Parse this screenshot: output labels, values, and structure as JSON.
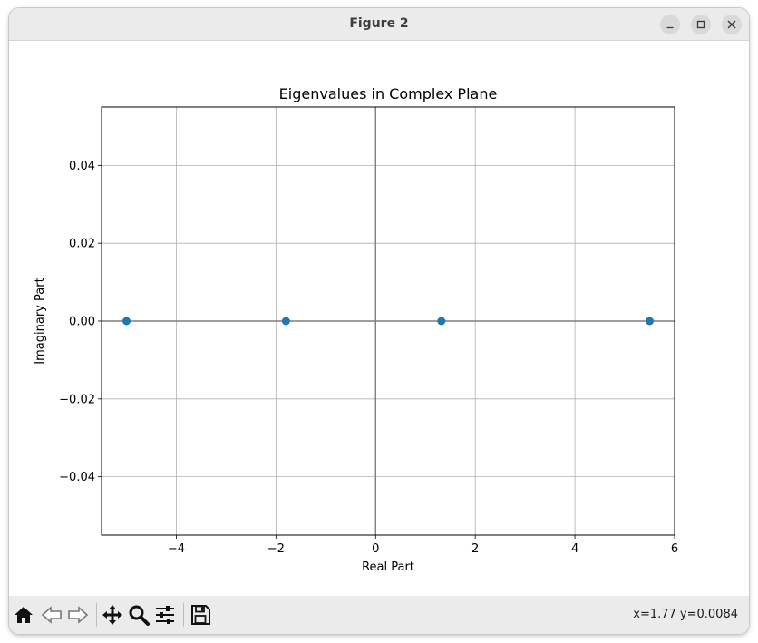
{
  "window": {
    "title": "Figure 2",
    "controls": [
      "minimize-icon",
      "maximize-icon",
      "close-icon"
    ]
  },
  "toolbar": {
    "buttons": [
      "home-icon",
      "back-arrow-icon",
      "forward-arrow-icon",
      "pan-icon",
      "zoom-icon",
      "configure-subplots-icon",
      "save-icon"
    ],
    "coordinates": "x=1.77 y=0.0084"
  },
  "chart_data": {
    "type": "scatter",
    "title": "Eigenvalues in Complex Plane",
    "xlabel": "Real Part",
    "ylabel": "Imaginary Part",
    "xlim": [
      -5.5,
      6
    ],
    "ylim": [
      -0.055,
      0.055
    ],
    "x_ticks": [
      -4,
      -2,
      0,
      2,
      4,
      6
    ],
    "x_tick_labels": [
      "−4",
      "−2",
      "0",
      "2",
      "4",
      "6"
    ],
    "y_ticks": [
      -0.04,
      -0.02,
      0.0,
      0.02,
      0.04
    ],
    "y_tick_labels": [
      "−0.04",
      "−0.02",
      "0.00",
      "0.02",
      "0.04"
    ],
    "grid": true,
    "reference_lines": {
      "x": 0,
      "y": 0
    },
    "points": [
      {
        "x": -5.0,
        "y": 0
      },
      {
        "x": -1.8,
        "y": 0
      },
      {
        "x": 1.32,
        "y": 0
      },
      {
        "x": 5.5,
        "y": 0
      }
    ],
    "marker_color": "#1f77b4"
  }
}
